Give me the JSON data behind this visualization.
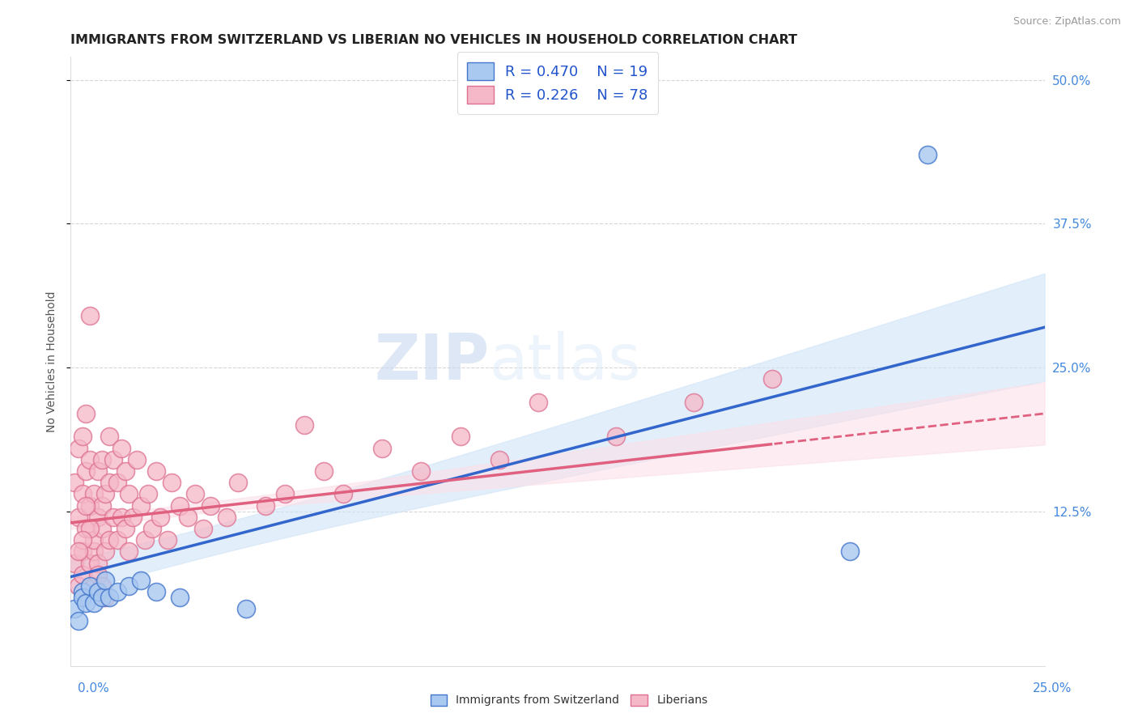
{
  "title": "IMMIGRANTS FROM SWITZERLAND VS LIBERIAN NO VEHICLES IN HOUSEHOLD CORRELATION CHART",
  "source": "Source: ZipAtlas.com",
  "ylabel": "No Vehicles in Household",
  "xlim": [
    0.0,
    0.25
  ],
  "ylim": [
    -0.01,
    0.52
  ],
  "watermark_zip": "ZIP",
  "watermark_atlas": "atlas",
  "blue_color": "#aac9f0",
  "pink_color": "#f5b8c8",
  "line_blue": "#3366cc",
  "line_pink": "#e06080",
  "ci_blue": "#d0e4f8",
  "ci_pink": "#fce0e8",
  "blue_edge": "#4477cc",
  "pink_edge": "#dd7090",
  "swiss_x": [
    0.001,
    0.002,
    0.003,
    0.003,
    0.004,
    0.005,
    0.006,
    0.007,
    0.008,
    0.009,
    0.01,
    0.012,
    0.015,
    0.018,
    0.022,
    0.028,
    0.045,
    0.2,
    0.22
  ],
  "swiss_y": [
    0.04,
    0.03,
    0.055,
    0.05,
    0.045,
    0.06,
    0.045,
    0.055,
    0.05,
    0.065,
    0.05,
    0.055,
    0.06,
    0.065,
    0.055,
    0.05,
    0.04,
    0.09,
    0.435
  ],
  "lib_x": [
    0.001,
    0.001,
    0.002,
    0.002,
    0.002,
    0.003,
    0.003,
    0.003,
    0.003,
    0.004,
    0.004,
    0.004,
    0.005,
    0.005,
    0.005,
    0.005,
    0.006,
    0.006,
    0.006,
    0.007,
    0.007,
    0.007,
    0.008,
    0.008,
    0.008,
    0.009,
    0.009,
    0.01,
    0.01,
    0.01,
    0.011,
    0.011,
    0.012,
    0.012,
    0.013,
    0.013,
    0.014,
    0.014,
    0.015,
    0.015,
    0.016,
    0.017,
    0.018,
    0.019,
    0.02,
    0.021,
    0.022,
    0.023,
    0.025,
    0.026,
    0.028,
    0.03,
    0.032,
    0.034,
    0.036,
    0.04,
    0.043,
    0.05,
    0.055,
    0.06,
    0.065,
    0.07,
    0.08,
    0.09,
    0.1,
    0.11,
    0.12,
    0.14,
    0.16,
    0.18,
    0.005,
    0.003,
    0.002,
    0.004,
    0.006,
    0.007,
    0.008,
    0.009
  ],
  "lib_y": [
    0.08,
    0.15,
    0.06,
    0.12,
    0.18,
    0.09,
    0.14,
    0.19,
    0.07,
    0.11,
    0.16,
    0.21,
    0.08,
    0.13,
    0.17,
    0.295,
    0.09,
    0.14,
    0.1,
    0.12,
    0.16,
    0.08,
    0.11,
    0.17,
    0.13,
    0.09,
    0.14,
    0.1,
    0.15,
    0.19,
    0.12,
    0.17,
    0.1,
    0.15,
    0.12,
    0.18,
    0.11,
    0.16,
    0.09,
    0.14,
    0.12,
    0.17,
    0.13,
    0.1,
    0.14,
    0.11,
    0.16,
    0.12,
    0.1,
    0.15,
    0.13,
    0.12,
    0.14,
    0.11,
    0.13,
    0.12,
    0.15,
    0.13,
    0.14,
    0.2,
    0.16,
    0.14,
    0.18,
    0.16,
    0.19,
    0.17,
    0.22,
    0.19,
    0.22,
    0.24,
    0.11,
    0.1,
    0.09,
    0.13,
    0.06,
    0.07,
    0.06,
    0.05
  ],
  "right_ytick_vals": [
    0.0,
    0.125,
    0.25,
    0.375,
    0.5
  ],
  "right_ytick_labels": [
    "",
    "12.5%",
    "25.0%",
    "37.5%",
    "50.0%"
  ]
}
